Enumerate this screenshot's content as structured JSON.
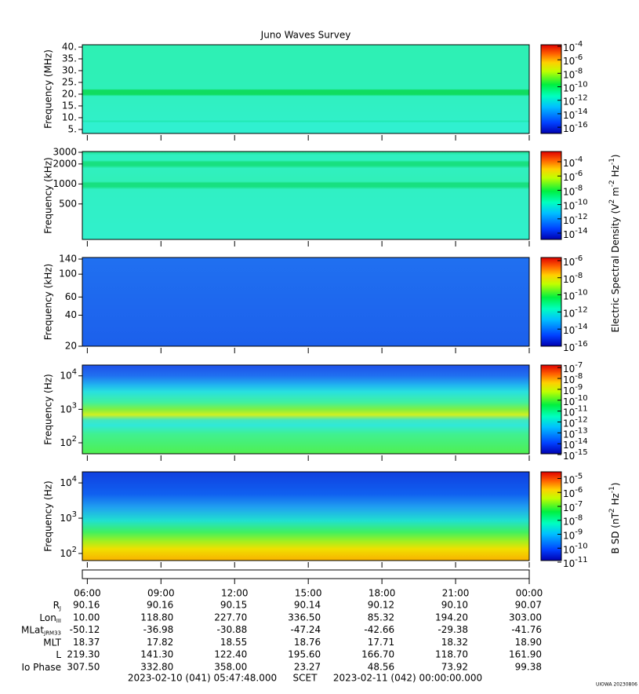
{
  "title": "Juno Waves Survey",
  "xlim": [
    5.7967,
    24
  ],
  "xticks": [
    {
      "value": 6,
      "label": "06:00"
    },
    {
      "value": 9,
      "label": "09:00"
    },
    {
      "value": 12,
      "label": "12:00"
    },
    {
      "value": 15,
      "label": "15:00"
    },
    {
      "value": 18,
      "label": "18:00"
    },
    {
      "value": 21,
      "label": "21:00"
    },
    {
      "value": 24,
      "label": "00:00"
    }
  ],
  "panels": [
    {
      "ylabel": "Frequency (MHz)",
      "log": false,
      "ylim": [
        3.3,
        41
      ],
      "yticks": [
        {
          "value": 5,
          "label": "5."
        },
        {
          "value": 10,
          "label": "10."
        },
        {
          "value": 15,
          "label": "15."
        },
        {
          "value": 20,
          "label": "20."
        },
        {
          "value": 25,
          "label": "25."
        },
        {
          "value": 30,
          "label": "30."
        },
        {
          "value": 35,
          "label": "35."
        },
        {
          "value": 40,
          "label": "40."
        }
      ],
      "clim": [
        1.2e-17,
        0.00017
      ],
      "cticks": [
        {
          "value": 0.0001,
          "base": "10",
          "exponent": "-4"
        },
        {
          "value": 1e-06,
          "base": "10",
          "exponent": "-6"
        },
        {
          "value": 1e-08,
          "base": "10",
          "exponent": "-8"
        },
        {
          "value": 1e-10,
          "base": "10",
          "exponent": "-10"
        },
        {
          "value": 1e-12,
          "base": "10",
          "exponent": "-12"
        },
        {
          "value": 1e-14,
          "base": "10",
          "exponent": "-14"
        },
        {
          "value": 1e-16,
          "base": "10",
          "exponent": "-16"
        }
      ]
    },
    {
      "ylabel": "Frequency (kHz)",
      "log": true,
      "ylim": [
        146,
        3080
      ],
      "yticks": [
        500,
        1000,
        2000,
        3000
      ],
      "clim": [
        1.3e-15,
        0.0027
      ],
      "cticks": [
        {
          "value": 0.0001,
          "base": "10",
          "exponent": "-4"
        },
        {
          "value": 1e-06,
          "base": "10",
          "exponent": "-6"
        },
        {
          "value": 1e-08,
          "base": "10",
          "exponent": "-8"
        },
        {
          "value": 1e-10,
          "base": "10",
          "exponent": "-10"
        },
        {
          "value": 1e-12,
          "base": "10",
          "exponent": "-12"
        },
        {
          "value": 1e-14,
          "base": "10",
          "exponent": "-14"
        }
      ]
    },
    {
      "ylabel": "Frequency (kHz)",
      "log": true,
      "ylim": [
        20,
        145
      ],
      "yticks": [
        20,
        40,
        60,
        100,
        140
      ],
      "clim": [
        1e-16,
        2.3e-06
      ],
      "cticks": [
        {
          "value": 1e-06,
          "base": "10",
          "exponent": "-6"
        },
        {
          "value": 1e-08,
          "base": "10",
          "exponent": "-8"
        },
        {
          "value": 1e-10,
          "base": "10",
          "exponent": "-10"
        },
        {
          "value": 1e-12,
          "base": "10",
          "exponent": "-12"
        },
        {
          "value": 1e-14,
          "base": "10",
          "exponent": "-14"
        },
        {
          "value": 1e-16,
          "base": "10",
          "exponent": "-16"
        }
      ]
    },
    {
      "ylabel": "Frequency (Hz)",
      "log": true,
      "ylim": [
        47,
        21000
      ],
      "yticks": [
        {
          "value": 100,
          "base": "10",
          "exponent": "2"
        },
        {
          "value": 1000,
          "base": "10",
          "exponent": "3"
        },
        {
          "value": 10000,
          "base": "10",
          "exponent": "4"
        }
      ],
      "clim": [
        1.2e-15,
        1.7e-07
      ],
      "cticks": [
        {
          "value": 1e-07,
          "base": "10",
          "exponent": "-7"
        },
        {
          "value": 1e-08,
          "base": "10",
          "exponent": "-8"
        },
        {
          "value": 1e-09,
          "base": "10",
          "exponent": "-9"
        },
        {
          "value": 1e-10,
          "base": "10",
          "exponent": "-10"
        },
        {
          "value": 1e-11,
          "base": "10",
          "exponent": "-11"
        },
        {
          "value": 1e-12,
          "base": "10",
          "exponent": "-12"
        },
        {
          "value": 1e-13,
          "base": "10",
          "exponent": "-13"
        },
        {
          "value": 1e-14,
          "base": "10",
          "exponent": "-14"
        },
        {
          "value": 1e-15,
          "base": "10",
          "exponent": "-15"
        }
      ]
    },
    {
      "ylabel": "Frequency (Hz)",
      "log": true,
      "ylim": [
        63,
        20600
      ],
      "yticks": [
        {
          "value": 100,
          "base": "10",
          "exponent": "2"
        },
        {
          "value": 1000,
          "base": "10",
          "exponent": "3"
        },
        {
          "value": 10000,
          "base": "10",
          "exponent": "4"
        }
      ],
      "clim": [
        1.3e-11,
        3e-05
      ],
      "cticks": [
        {
          "value": 1e-05,
          "base": "10",
          "exponent": "-5"
        },
        {
          "value": 1e-06,
          "base": "10",
          "exponent": "-6"
        },
        {
          "value": 1e-07,
          "base": "10",
          "exponent": "-7"
        },
        {
          "value": 1e-08,
          "base": "10",
          "exponent": "-8"
        },
        {
          "value": 1e-09,
          "base": "10",
          "exponent": "-9"
        },
        {
          "value": 1e-10,
          "base": "10",
          "exponent": "-10"
        },
        {
          "value": 1e-11,
          "base": "10",
          "exponent": "-11"
        }
      ]
    }
  ],
  "colorbar_labels": [
    [
      {
        "text": "Electric Spectral Density (V"
      },
      {
        "sup": "2"
      },
      {
        "text": " m"
      },
      {
        "sup": "-2"
      },
      {
        "text": " Hz"
      },
      {
        "sup": "-1"
      },
      {
        "text": ")"
      }
    ],
    [
      {
        "text": "B SD (nT"
      },
      {
        "sup": "2"
      },
      {
        "text": " Hz"
      },
      {
        "sup": "-1"
      },
      {
        "text": ")"
      }
    ]
  ],
  "ephemeris": [
    {
      "label": {
        "base": "R",
        "sub": "J"
      },
      "values": [
        "90.16",
        "90.16",
        "90.15",
        "90.14",
        "90.12",
        "90.10",
        "90.07"
      ]
    },
    {
      "label": {
        "base": "Lon",
        "sub": "III"
      },
      "values": [
        "10.00",
        "118.80",
        "227.70",
        "336.50",
        "85.32",
        "194.20",
        "303.00"
      ]
    },
    {
      "label": {
        "base": "MLat",
        "sub": "JRM33"
      },
      "values": [
        "-50.12",
        "-36.98",
        "-30.88",
        "-47.24",
        "-42.66",
        "-29.38",
        "-41.76"
      ]
    },
    {
      "label": {
        "base": "MLT"
      },
      "values": [
        "18.37",
        "17.82",
        "18.55",
        "18.76",
        "17.71",
        "18.32",
        "18.90"
      ]
    },
    {
      "label": {
        "base": "L"
      },
      "values": [
        "219.30",
        "141.30",
        "122.40",
        "195.60",
        "166.70",
        "118.70",
        "161.90"
      ]
    },
    {
      "label": {
        "base": "Io Phase"
      },
      "values": [
        "307.50",
        "332.80",
        "358.00",
        "23.27",
        "48.56",
        "73.92",
        "99.38"
      ]
    }
  ],
  "footer": {
    "start": "2023-02-10 (041) 05:47:48.000",
    "axis": "SCET",
    "end": "2023-02-11 (042) 00:00:00.000"
  },
  "stamp": "UIOWA 20230806"
}
